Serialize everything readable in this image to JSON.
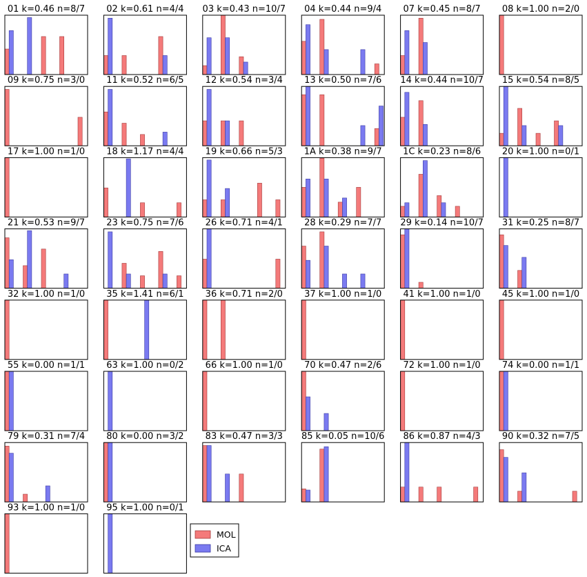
{
  "colors": {
    "MOL": "#f47a7a",
    "ICA": "#7a7af0",
    "MOL_edge": "#a33a3a",
    "ICA_edge": "#3a3aa3"
  },
  "chart_data": {
    "type": "bar",
    "layout": "grid of small-multiple histograms, 6 columns x 8 rows",
    "bin_positions": [
      0,
      1,
      2,
      3,
      4
    ],
    "ylim_top": 1.0,
    "legend": {
      "placement": "right of last panel",
      "entries": [
        "MOL",
        "ICA"
      ]
    },
    "panels": [
      {
        "title": "01 k=0.46 n=8/7",
        "MOL": [
          0.43,
          0.0,
          0.64,
          0.64,
          0.0
        ],
        "ICA": [
          0.74,
          0.96,
          0.0,
          0.0,
          0.0
        ]
      },
      {
        "title": "02 k=0.61 n=4/4",
        "MOL": [
          0.32,
          0.32,
          0.0,
          0.64,
          0.0
        ],
        "ICA": [
          0.95,
          0.0,
          0.0,
          0.32,
          0.0
        ]
      },
      {
        "title": "03 k=0.43 n=10/7",
        "MOL": [
          0.15,
          1.0,
          0.3,
          0.0,
          0.0
        ],
        "ICA": [
          0.62,
          0.62,
          0.21,
          0.0,
          0.0
        ]
      },
      {
        "title": "04 k=0.44 n=9/4",
        "MOL": [
          0.56,
          0.93,
          0.0,
          0.0,
          0.18
        ],
        "ICA": [
          0.84,
          0.42,
          0.0,
          0.42,
          0.0
        ]
      },
      {
        "title": "07 k=0.45 n=8/7",
        "MOL": [
          0.32,
          0.95,
          0.0,
          0.0,
          0.0
        ],
        "ICA": [
          0.74,
          0.54,
          0.0,
          0.0,
          0.0
        ]
      },
      {
        "title": "08 k=1.00 n=2/0",
        "MOL": [
          1.0,
          0.0,
          0.0,
          0.0,
          0.0
        ],
        "ICA": [
          0.0,
          0.0,
          0.0,
          0.0,
          0.0
        ]
      },
      {
        "title": "09 k=0.75 n=3/0",
        "MOL": [
          0.95,
          0.0,
          0.0,
          0.0,
          0.48
        ],
        "ICA": [
          0.0,
          0.0,
          0.0,
          0.0,
          0.0
        ]
      },
      {
        "title": "11 k=0.52 n=6/5",
        "MOL": [
          0.57,
          0.38,
          0.19,
          0.0,
          0.0
        ],
        "ICA": [
          0.95,
          0.0,
          0.0,
          0.23,
          0.0
        ]
      },
      {
        "title": "12 k=0.54 n=3/4",
        "MOL": [
          0.42,
          0.42,
          0.42,
          0.0,
          0.0
        ],
        "ICA": [
          0.95,
          0.42,
          0.0,
          0.0,
          0.0
        ]
      },
      {
        "title": "13 k=0.50 n=7/6",
        "MOL": [
          0.86,
          0.86,
          0.0,
          0.0,
          0.29
        ],
        "ICA": [
          1.0,
          0.0,
          0.0,
          0.34,
          0.67
        ]
      },
      {
        "title": "14 k=0.44 n=10/7",
        "MOL": [
          0.48,
          0.76,
          0.0,
          0.0,
          0.0
        ],
        "ICA": [
          0.9,
          0.36,
          0.0,
          0.0,
          0.0
        ]
      },
      {
        "title": "15 k=0.54 n=8/5",
        "MOL": [
          0.21,
          0.63,
          0.21,
          0.42,
          0.0
        ],
        "ICA": [
          1.0,
          0.34,
          0.0,
          0.34,
          0.0
        ]
      },
      {
        "title": "17 k=1.00 n=1/0",
        "MOL": [
          1.0,
          0.0,
          0.0,
          0.0,
          0.0
        ],
        "ICA": [
          0.0,
          0.0,
          0.0,
          0.0,
          0.0
        ]
      },
      {
        "title": "18 k=1.17 n=4/4",
        "MOL": [
          0.49,
          0.0,
          0.24,
          0.0,
          0.24
        ],
        "ICA": [
          0.0,
          0.98,
          0.0,
          0.0,
          0.0
        ]
      },
      {
        "title": "19 k=0.66 n=5/3",
        "MOL": [
          0.29,
          0.29,
          0.0,
          0.57,
          0.29
        ],
        "ICA": [
          0.96,
          0.48,
          0.0,
          0.0,
          0.0
        ]
      },
      {
        "title": "1A k=0.38 n=9/7",
        "MOL": [
          0.5,
          0.99,
          0.25,
          0.5,
          0.0
        ],
        "ICA": [
          0.64,
          0.64,
          0.32,
          0.0,
          0.0
        ]
      },
      {
        "title": "1C k=0.23 n=8/6",
        "MOL": [
          0.18,
          0.72,
          0.36,
          0.18,
          0.0
        ],
        "ICA": [
          0.24,
          0.95,
          0.24,
          0.0,
          0.0
        ]
      },
      {
        "title": "20 k=1.00 n=0/1",
        "MOL": [
          0.0,
          0.0,
          0.0,
          0.0,
          0.0
        ],
        "ICA": [
          1.0,
          0.0,
          0.0,
          0.0,
          0.0
        ]
      },
      {
        "title": "21 k=0.53 n=9/7",
        "MOL": [
          0.85,
          0.38,
          0.66,
          0.0,
          0.0
        ],
        "ICA": [
          0.48,
          0.97,
          0.0,
          0.24,
          0.0
        ]
      },
      {
        "title": "23 k=0.75 n=7/6",
        "MOL": [
          0.0,
          0.42,
          0.21,
          0.62,
          0.21
        ],
        "ICA": [
          0.95,
          0.24,
          0.0,
          0.24,
          0.0
        ]
      },
      {
        "title": "26 k=0.71 n=4/1",
        "MOL": [
          0.49,
          0.0,
          0.0,
          0.0,
          0.49
        ],
        "ICA": [
          1.0,
          0.0,
          0.0,
          0.0,
          0.0
        ]
      },
      {
        "title": "28 k=0.29 n=7/7",
        "MOL": [
          0.71,
          0.95,
          0.0,
          0.0,
          0.0
        ],
        "ICA": [
          0.47,
          0.71,
          0.24,
          0.24,
          0.0
        ]
      },
      {
        "title": "29 k=0.14 n=10/7",
        "MOL": [
          0.9,
          0.1,
          0.0,
          0.0,
          0.0
        ],
        "ICA": [
          1.0,
          0.0,
          0.0,
          0.0,
          0.0
        ]
      },
      {
        "title": "31 k=0.25 n=8/7",
        "MOL": [
          0.9,
          0.3,
          0.0,
          0.0,
          0.0
        ],
        "ICA": [
          0.72,
          0.52,
          0.0,
          0.0,
          0.0
        ]
      },
      {
        "title": "32 k=1.00 n=1/0",
        "MOL": [
          1.0,
          0.0,
          0.0,
          0.0,
          0.0
        ],
        "ICA": [
          0.0,
          0.0,
          0.0,
          0.0,
          0.0
        ]
      },
      {
        "title": "35 k=1.41 n=6/1",
        "MOL": [
          1.0,
          0.0,
          0.0,
          0.0,
          0.0
        ],
        "ICA": [
          0.0,
          0.0,
          1.0,
          0.0,
          0.0
        ]
      },
      {
        "title": "36 k=0.71 n=2/0",
        "MOL": [
          1.0,
          1.0,
          0.0,
          0.0,
          0.0
        ],
        "ICA": [
          0.0,
          0.0,
          0.0,
          0.0,
          0.0
        ]
      },
      {
        "title": "37 k=1.00 n=1/0",
        "MOL": [
          1.0,
          0.0,
          0.0,
          0.0,
          0.0
        ],
        "ICA": [
          0.0,
          0.0,
          0.0,
          0.0,
          0.0
        ]
      },
      {
        "title": "41 k=1.00 n=1/0",
        "MOL": [
          1.0,
          0.0,
          0.0,
          0.0,
          0.0
        ],
        "ICA": [
          0.0,
          0.0,
          0.0,
          0.0,
          0.0
        ]
      },
      {
        "title": "45 k=1.00 n=1/0",
        "MOL": [
          1.0,
          0.0,
          0.0,
          0.0,
          0.0
        ],
        "ICA": [
          0.0,
          0.0,
          0.0,
          0.0,
          0.0
        ]
      },
      {
        "title": "55 k=0.00 n=1/1",
        "MOL": [
          1.0,
          0.0,
          0.0,
          0.0,
          0.0
        ],
        "ICA": [
          1.0,
          0.0,
          0.0,
          0.0,
          0.0
        ]
      },
      {
        "title": "63 k=1.00 n=0/2",
        "MOL": [
          0.0,
          0.0,
          0.0,
          0.0,
          0.0
        ],
        "ICA": [
          1.0,
          0.0,
          0.0,
          0.0,
          0.0
        ]
      },
      {
        "title": "66 k=1.00 n=1/0",
        "MOL": [
          1.0,
          0.0,
          0.0,
          0.0,
          0.0
        ],
        "ICA": [
          0.0,
          0.0,
          0.0,
          0.0,
          0.0
        ]
      },
      {
        "title": "70 k=0.47 n=2/6",
        "MOL": [
          1.0,
          0.0,
          0.0,
          0.0,
          0.0
        ],
        "ICA": [
          0.57,
          0.29,
          0.0,
          0.0,
          0.0
        ]
      },
      {
        "title": "72 k=1.00 n=1/0",
        "MOL": [
          1.0,
          0.0,
          0.0,
          0.0,
          0.0
        ],
        "ICA": [
          0.0,
          0.0,
          0.0,
          0.0,
          0.0
        ]
      },
      {
        "title": "74 k=0.00 n=1/1",
        "MOL": [
          1.0,
          0.0,
          0.0,
          0.0,
          0.0
        ],
        "ICA": [
          1.0,
          0.0,
          0.0,
          0.0,
          0.0
        ]
      },
      {
        "title": "79 k=0.31 n=7/4",
        "MOL": [
          0.94,
          0.13,
          0.0,
          0.0,
          0.0
        ],
        "ICA": [
          0.82,
          0.0,
          0.27,
          0.0,
          0.0
        ]
      },
      {
        "title": "80 k=0.00 n=3/2",
        "MOL": [
          1.0,
          0.0,
          0.0,
          0.0,
          0.0
        ],
        "ICA": [
          1.0,
          0.0,
          0.0,
          0.0,
          0.0
        ]
      },
      {
        "title": "83 k=0.47 n=3/3",
        "MOL": [
          0.95,
          0.0,
          0.47,
          0.0,
          0.0
        ],
        "ICA": [
          0.95,
          0.47,
          0.0,
          0.0,
          0.0
        ]
      },
      {
        "title": "85 k=0.05 n=10/6",
        "MOL": [
          0.22,
          0.89,
          0.0,
          0.0,
          0.0
        ],
        "ICA": [
          0.2,
          0.93,
          0.0,
          0.0,
          0.0
        ]
      },
      {
        "title": "86 k=0.87 n=4/3",
        "MOL": [
          0.25,
          0.25,
          0.25,
          0.0,
          0.25
        ],
        "ICA": [
          1.0,
          0.0,
          0.0,
          0.0,
          0.0
        ]
      },
      {
        "title": "90 k=0.32 n=7/5",
        "MOL": [
          0.88,
          0.18,
          0.0,
          0.0,
          0.18
        ],
        "ICA": [
          0.75,
          0.49,
          0.0,
          0.0,
          0.0
        ]
      },
      {
        "title": "93 k=1.00 n=1/0",
        "MOL": [
          1.0,
          0.0,
          0.0,
          0.0,
          0.0
        ],
        "ICA": [
          0.0,
          0.0,
          0.0,
          0.0,
          0.0
        ]
      },
      {
        "title": "95 k=1.00 n=0/1",
        "MOL": [
          0.0,
          0.0,
          0.0,
          0.0,
          0.0
        ],
        "ICA": [
          1.0,
          0.0,
          0.0,
          0.0,
          0.0
        ]
      }
    ]
  }
}
